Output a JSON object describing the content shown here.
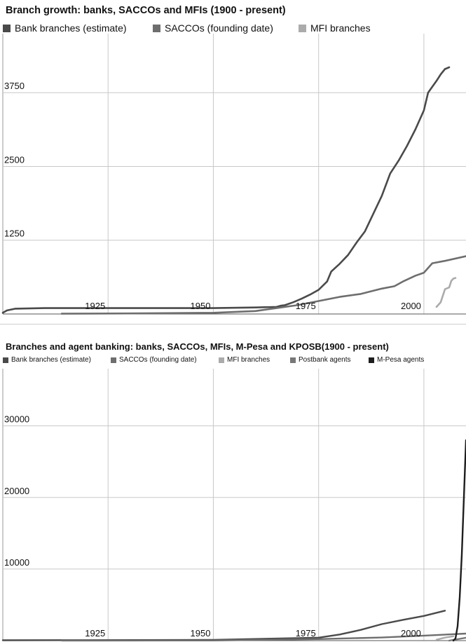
{
  "charts": [
    {
      "id": "chart1",
      "title": "Branch growth: banks, SACCOs and MFIs (1900 - present)",
      "legend": [
        {
          "label": "Bank branches (estimate)",
          "color": "#4a4a4a"
        },
        {
          "label": "SACCOs (founding date)",
          "color": "#6e6e6e"
        },
        {
          "label": "MFI branches",
          "color": "#ababab"
        }
      ],
      "y_ticks": [
        "3750",
        "2500",
        "1250"
      ],
      "x_ticks": [
        "1925",
        "1950",
        "1975",
        "2000"
      ]
    },
    {
      "id": "chart2",
      "title": "Branches and agent banking: banks, SACCOs, MFIs, M-Pesa and KPOSB(1900 - present)",
      "legend": [
        {
          "label": "Bank branches (estimate)",
          "color": "#4a4a4a"
        },
        {
          "label": "SACCOs (founding date)",
          "color": "#6e6e6e"
        },
        {
          "label": "MFI branches",
          "color": "#ababab"
        },
        {
          "label": "Postbank agents",
          "color": "#777777"
        },
        {
          "label": "M-Pesa agents",
          "color": "#1e1e1e"
        }
      ],
      "y_ticks": [
        "30000",
        "20000",
        "10000"
      ],
      "x_ticks": [
        "1925",
        "1950",
        "1975",
        "2000"
      ]
    }
  ],
  "chart_data": [
    {
      "type": "line",
      "title": "Branch growth: banks, SACCOs and MFIs (1900 - present)",
      "xlim": [
        1900,
        2010
      ],
      "ylim": [
        0,
        4750
      ],
      "yticks": [
        1250,
        2500,
        3750
      ],
      "xticks": [
        1925,
        1950,
        1975,
        2000
      ],
      "grid": true,
      "legend_position": "top",
      "series": [
        {
          "name": "Bank branches (estimate)",
          "color": "#4a4a4a",
          "x": [
            1900,
            1901,
            1903,
            1910,
            1930,
            1950,
            1960,
            1965,
            1966,
            1967,
            1969,
            1971,
            1973,
            1975,
            1977,
            1978,
            1980,
            1982,
            1984,
            1986,
            1988,
            1990,
            1992,
            1994,
            1996,
            1998,
            2000,
            2001,
            2003,
            2004,
            2005,
            2006
          ],
          "y": [
            20,
            60,
            90,
            100,
            100,
            100,
            110,
            120,
            140,
            150,
            200,
            260,
            330,
            410,
            550,
            720,
            850,
            1000,
            1210,
            1400,
            1700,
            2000,
            2380,
            2600,
            2850,
            3130,
            3450,
            3750,
            3950,
            4060,
            4150,
            4180
          ]
        },
        {
          "name": "SACCOs (founding date)",
          "color": "#6e6e6e",
          "x": [
            1914,
            1930,
            1950,
            1960,
            1965,
            1970,
            1975,
            1980,
            1985,
            1990,
            1993,
            1995,
            1998,
            2000,
            2002,
            2005,
            2010
          ],
          "y": [
            5,
            10,
            20,
            50,
            100,
            150,
            220,
            290,
            340,
            430,
            470,
            550,
            650,
            700,
            860,
            900,
            980
          ]
        },
        {
          "name": "MFI branches",
          "color": "#ababab",
          "x": [
            2003,
            2004,
            2005,
            2006,
            2006.5,
            2007,
            2007.5
          ],
          "y": [
            120,
            200,
            420,
            450,
            560,
            600,
            610
          ]
        }
      ]
    },
    {
      "type": "line",
      "title": "Branches and agent banking: banks, SACCOs, MFIs, M-Pesa and KPOSB(1900 - present)",
      "xlim": [
        1900,
        2010
      ],
      "ylim": [
        0,
        38000
      ],
      "yticks": [
        10000,
        20000,
        30000
      ],
      "xticks": [
        1925,
        1950,
        1975,
        2000
      ],
      "grid": true,
      "legend_position": "top",
      "series": [
        {
          "name": "Bank branches (estimate)",
          "color": "#4a4a4a",
          "x": [
            1900,
            1950,
            1975,
            1980,
            1985,
            1990,
            1995,
            2000,
            2005
          ],
          "y": [
            50,
            100,
            410,
            850,
            1500,
            2300,
            2900,
            3450,
            4180
          ]
        },
        {
          "name": "SACCOs (founding date)",
          "color": "#6e6e6e",
          "x": [
            1914,
            1950,
            1975,
            1990,
            2000,
            2010
          ],
          "y": [
            5,
            20,
            220,
            430,
            700,
            980
          ]
        },
        {
          "name": "MFI branches",
          "color": "#ababab",
          "x": [
            2003,
            2005,
            2007
          ],
          "y": [
            120,
            420,
            610
          ]
        },
        {
          "name": "Postbank agents",
          "color": "#777777",
          "x": [
            2006,
            2008,
            2010
          ],
          "y": [
            0,
            200,
            400
          ]
        },
        {
          "name": "M-Pesa agents",
          "color": "#1e1e1e",
          "x": [
            2007,
            2007.5,
            2008,
            2008.5,
            2009,
            2009.5,
            2010
          ],
          "y": [
            0,
            300,
            2000,
            6000,
            12000,
            20000,
            28000
          ]
        }
      ]
    }
  ]
}
